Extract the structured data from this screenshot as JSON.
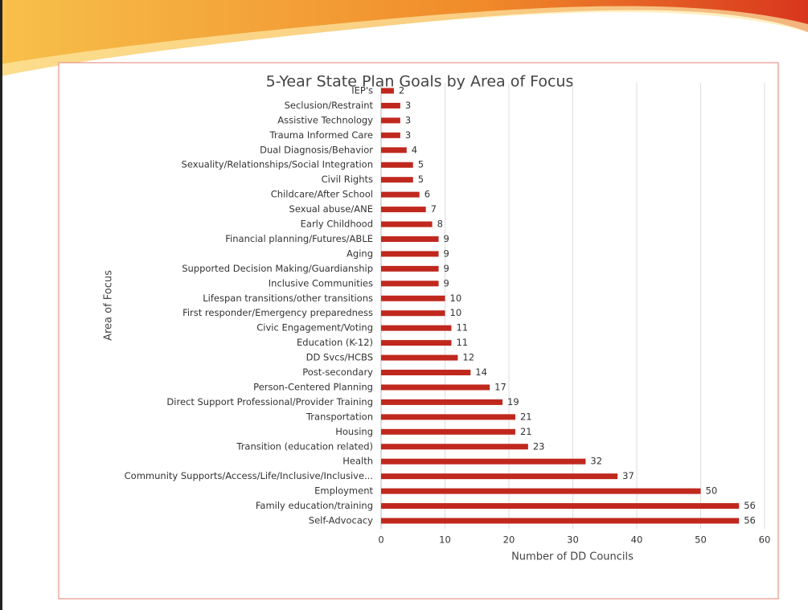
{
  "chart_data": {
    "type": "bar",
    "orientation": "horizontal",
    "title": "5-Year State Plan Goals by Area of Focus",
    "x_label": "Number of DD Councils",
    "y_label": "Area of Focus",
    "categories": [
      "IEP's",
      "Seclusion/Restraint",
      "Assistive Technology",
      "Trauma Informed Care",
      "Dual Diagnosis/Behavior",
      "Sexuality/Relationships/Social Integration",
      "Civil Rights",
      "Childcare/After School",
      "Sexual abuse/ANE",
      "Early Childhood",
      "Financial planning/Futures/ABLE",
      "Aging",
      "Supported Decision Making/Guardianship",
      "Inclusive Communities",
      "Lifespan transitions/other transitions",
      "First responder/Emergency preparedness",
      "Civic Engagement/Voting",
      "Education (K-12)",
      "DD Svcs/HCBS",
      "Post-secondary",
      "Person-Centered Planning",
      "Direct Support Professional/Provider Training",
      "Transportation",
      "Housing",
      "Transition (education related)",
      "Health",
      "Community Supports/Access/Life/Inclusive/Inclusive...",
      "Employment",
      "Family education/training",
      "Self-Advocacy"
    ],
    "values": [
      2,
      3,
      3,
      3,
      4,
      5,
      5,
      6,
      7,
      8,
      9,
      9,
      9,
      9,
      10,
      10,
      11,
      11,
      12,
      14,
      17,
      19,
      21,
      21,
      23,
      32,
      37,
      50,
      56,
      56
    ],
    "color": "#c0281e",
    "xlim": [
      0,
      60
    ],
    "xticks": [
      0,
      10,
      20,
      30,
      40,
      50,
      60
    ],
    "grid": true
  }
}
